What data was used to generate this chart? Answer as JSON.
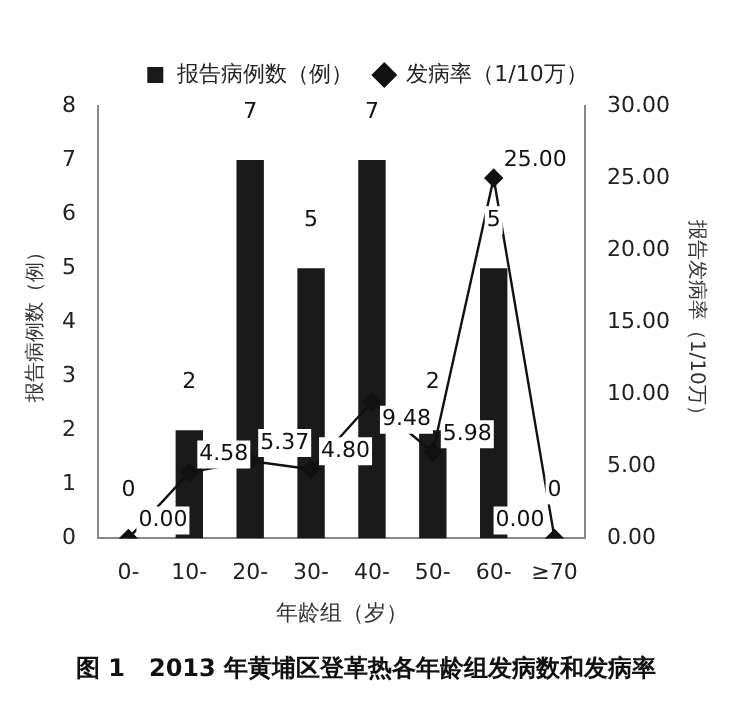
{
  "chart_data": {
    "type": "bar",
    "title": "图 1　2013 年黄埔区登革热各年龄组发病数和发病率",
    "xlabel": "年龄组（岁）",
    "ylabel": "报告病例数（例）",
    "y2label": "报告发病率（1/10万）",
    "categories": [
      "0-",
      "10-",
      "20-",
      "30-",
      "40-",
      "50-",
      "60-",
      "≥70"
    ],
    "series": [
      {
        "name": "报告病例数（例）",
        "color": "#1a1a1a",
        "values": [
          0,
          2,
          7,
          5,
          7,
          2,
          5,
          0
        ],
        "value_labels": [
          "0",
          "2",
          "7",
          "5",
          "7",
          "2",
          "5",
          "0"
        ]
      },
      {
        "name": "发病率（1/10万）",
        "type": "line",
        "axis": "y2",
        "color": "#111111",
        "marker": "diamond",
        "values": [
          0,
          4.58,
          5.37,
          4.8,
          9.48,
          5.98,
          25.0,
          0
        ],
        "value_labels": [
          "0.00",
          "4.58",
          "5.37",
          "4.80",
          "9.48",
          "5.98",
          "25.00",
          "0.00"
        ]
      }
    ],
    "ylim": [
      0,
      8
    ],
    "yticks": [
      0,
      1,
      2,
      3,
      4,
      5,
      6,
      7,
      8
    ],
    "y2lim": [
      0,
      30
    ],
    "y2ticks": [
      {
        "value": 0,
        "label": "0.00"
      },
      {
        "value": 5,
        "label": "5.00"
      },
      {
        "value": 10,
        "label": "10.00"
      },
      {
        "value": 15,
        "label": "15.00"
      },
      {
        "value": 20,
        "label": "20.00"
      },
      {
        "value": 25,
        "label": "25.00"
      },
      {
        "value": 30,
        "label": "30.00"
      }
    ],
    "grid": false,
    "legend": "top"
  }
}
